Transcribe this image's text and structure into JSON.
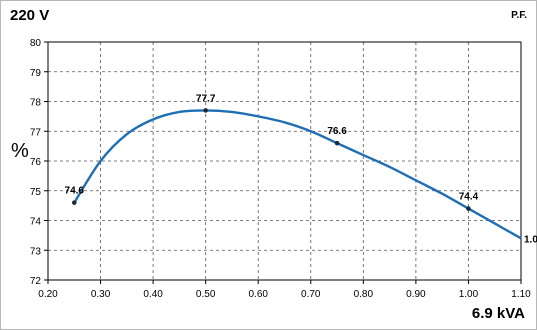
{
  "chart_data": {
    "type": "line",
    "title": "220 V",
    "corner_label": "P.F.",
    "xlabel": "6.9 kVA",
    "ylabel": "%",
    "xlim": [
      0.2,
      1.1
    ],
    "ylim": [
      72,
      80
    ],
    "x_ticks": [
      "0.20",
      "0.30",
      "0.40",
      "0.50",
      "0.60",
      "0.70",
      "0.80",
      "0.90",
      "1.00",
      "1.10"
    ],
    "y_ticks": [
      "72",
      "73",
      "74",
      "75",
      "76",
      "77",
      "78",
      "79",
      "80"
    ],
    "grid": true,
    "series": [
      {
        "name": "1.0",
        "color": "#1f6fb5",
        "x": [
          0.25,
          0.3,
          0.35,
          0.4,
          0.45,
          0.5,
          0.55,
          0.6,
          0.65,
          0.7,
          0.75,
          0.8,
          0.85,
          0.9,
          0.95,
          1.0,
          1.05,
          1.1
        ],
        "y": [
          74.6,
          76.0,
          76.9,
          77.4,
          77.65,
          77.7,
          77.65,
          77.5,
          77.3,
          77.0,
          76.6,
          76.2,
          75.8,
          75.35,
          74.9,
          74.4,
          73.9,
          73.4
        ],
        "points": [
          {
            "x": 0.25,
            "y": 74.6,
            "label": "74.6"
          },
          {
            "x": 0.5,
            "y": 77.7,
            "label": "77.7"
          },
          {
            "x": 0.75,
            "y": 76.6,
            "label": "76.6"
          },
          {
            "x": 1.0,
            "y": 74.4,
            "label": "74.4"
          }
        ]
      }
    ]
  }
}
